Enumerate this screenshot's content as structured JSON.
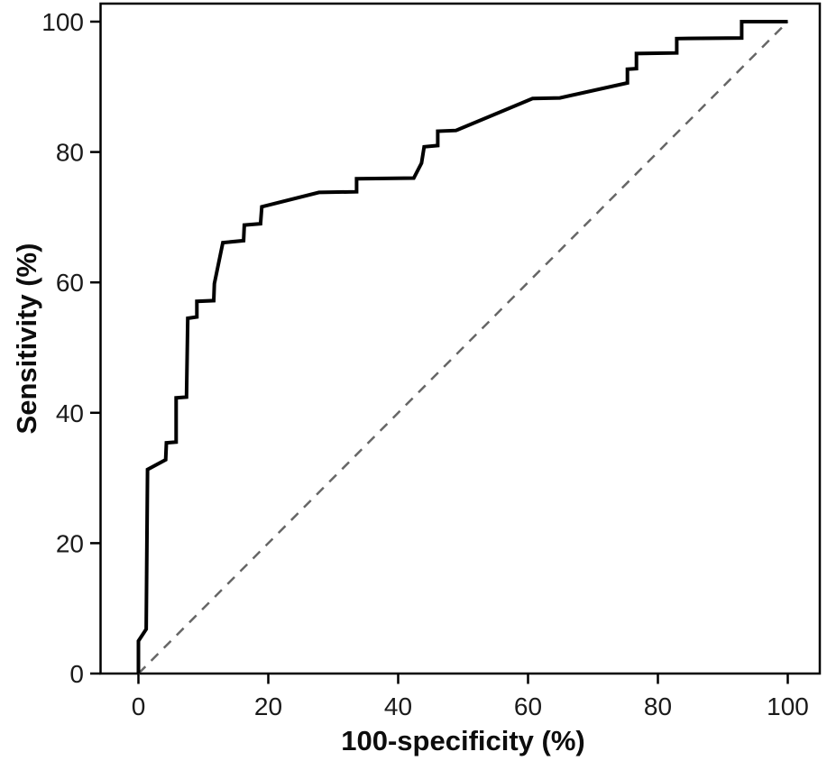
{
  "chart_data": {
    "type": "line",
    "title": "",
    "xlabel": "100-specificity (%)",
    "ylabel": "Sensitivity (%)",
    "xlim": [
      0,
      100
    ],
    "ylim": [
      0,
      100
    ],
    "x_ticks": [
      0,
      20,
      40,
      60,
      80,
      100
    ],
    "y_ticks": [
      0,
      20,
      40,
      60,
      80,
      100
    ],
    "grid": false,
    "legend": "none",
    "frame_color": "#000000",
    "background_color": "#ffffff",
    "series": [
      {
        "name": "ROC curve",
        "color": "#000000",
        "style": "solid",
        "width": 4,
        "points": [
          [
            0,
            0
          ],
          [
            0,
            5.0
          ],
          [
            1.2,
            6.8
          ],
          [
            1.4,
            31.3
          ],
          [
            4.2,
            32.8
          ],
          [
            4.3,
            35.4
          ],
          [
            5.8,
            35.5
          ],
          [
            5.8,
            42.3
          ],
          [
            7.4,
            42.4
          ],
          [
            7.6,
            54.5
          ],
          [
            9.0,
            54.7
          ],
          [
            9.0,
            57.1
          ],
          [
            11.6,
            57.2
          ],
          [
            11.7,
            59.8
          ],
          [
            13.0,
            66.1
          ],
          [
            16.2,
            66.4
          ],
          [
            16.3,
            68.8
          ],
          [
            18.8,
            69.0
          ],
          [
            19.0,
            71.6
          ],
          [
            27.8,
            73.8
          ],
          [
            33.6,
            73.9
          ],
          [
            33.6,
            75.9
          ],
          [
            42.4,
            76.0
          ],
          [
            43.6,
            78.3
          ],
          [
            44.0,
            80.8
          ],
          [
            46.1,
            81.0
          ],
          [
            46.1,
            83.2
          ],
          [
            48.9,
            83.3
          ],
          [
            60.7,
            88.2
          ],
          [
            64.9,
            88.3
          ],
          [
            75.3,
            90.6
          ],
          [
            75.3,
            92.7
          ],
          [
            76.7,
            92.8
          ],
          [
            76.7,
            95.1
          ],
          [
            82.9,
            95.2
          ],
          [
            82.9,
            97.4
          ],
          [
            92.9,
            97.5
          ],
          [
            92.9,
            100
          ],
          [
            100,
            100
          ]
        ]
      },
      {
        "name": "Reference diagonal",
        "color": "#666666",
        "style": "dashed",
        "width": 2.5,
        "points": [
          [
            0,
            0
          ],
          [
            100,
            100
          ]
        ]
      }
    ]
  }
}
